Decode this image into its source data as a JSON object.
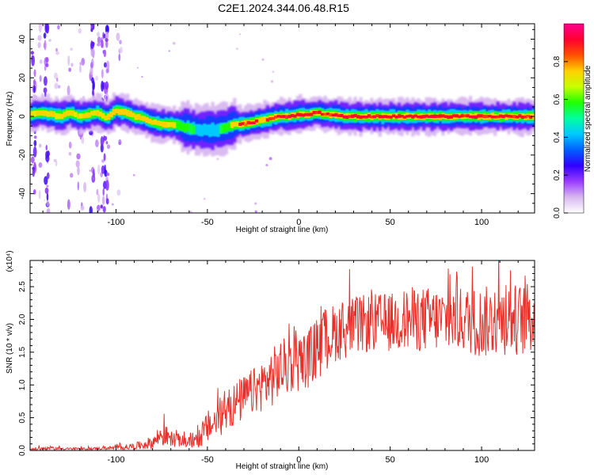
{
  "title": "C2E1.2024.344.06.48.R15",
  "chart_data": [
    {
      "type": "heatmap",
      "xlabel": "Height of straight line (km)",
      "ylabel": "Frequency (Hz)",
      "xlim": [
        -147,
        129
      ],
      "ylim": [
        -50,
        48
      ],
      "xticks": [
        -100,
        -50,
        0,
        50,
        100
      ],
      "yticks": [
        -40,
        -20,
        0,
        20,
        40
      ],
      "grid": false,
      "colorbar": {
        "label": "Normalized spectral amplitude",
        "range": [
          0,
          1
        ],
        "ticks": [
          "0.0",
          "0.2",
          "0.4",
          "0.6",
          "0.8"
        ],
        "colors": [
          "#ffffff",
          "#d8b8f0",
          "#9a3cff",
          "#3000ff",
          "#0060ff",
          "#00c8ff",
          "#00ffa0",
          "#20ff00",
          "#c8ff00",
          "#ffd000",
          "#ff5000",
          "#ff0030",
          "#ff0090"
        ]
      },
      "ridge": {
        "x": [
          -147,
          -140,
          -135,
          -130,
          -125,
          -120,
          -115,
          -110,
          -105,
          -100,
          -95,
          -90,
          -85,
          -80,
          -75,
          -70,
          -65,
          -60,
          -55,
          -50,
          -45,
          -40,
          -35,
          -30,
          -25,
          -20,
          -15,
          -10,
          -5,
          0,
          5,
          10,
          15,
          20,
          25,
          30,
          40,
          50,
          60,
          70,
          80,
          90,
          100,
          110,
          120,
          129
        ],
        "y": [
          1,
          2,
          1,
          0,
          2,
          0,
          1,
          2,
          -1,
          3,
          2,
          0,
          -1,
          -3,
          -4,
          -4,
          -5,
          -6,
          -7,
          -7,
          -7,
          -6,
          -4,
          -4,
          -3,
          -2,
          -1,
          0,
          0,
          1,
          1,
          2,
          1,
          1,
          0,
          0,
          0,
          0,
          0,
          0,
          0,
          0,
          0,
          0,
          0,
          0
        ],
        "peak": [
          0.75,
          0.8,
          0.8,
          0.75,
          0.8,
          0.75,
          0.8,
          0.8,
          0.75,
          0.85,
          0.85,
          0.8,
          0.85,
          0.8,
          0.8,
          0.75,
          0.7,
          0.6,
          0.55,
          0.55,
          0.55,
          0.6,
          0.85,
          0.9,
          0.9,
          0.85,
          0.9,
          0.95,
          0.95,
          0.95,
          0.95,
          0.95,
          0.9,
          0.95,
          0.95,
          0.95,
          0.95,
          1.0,
          1.0,
          1.0,
          1.0,
          0.95,
          0.95,
          0.9,
          0.95,
          0.85
        ]
      }
    },
    {
      "type": "line",
      "xlabel": "Height of straight line (km)",
      "ylabel": "SNR (10 * v/v)",
      "multiplier": "(x10⁴)",
      "xlim": [
        -147,
        129
      ],
      "ylim": [
        0,
        2.9
      ],
      "xticks": [
        -100,
        -50,
        0,
        50,
        100
      ],
      "yticks": [
        "0.0",
        "0.5",
        "1.0",
        "1.5",
        "2.0",
        "2.5"
      ],
      "grid": false,
      "color": "#e8302a",
      "x": [
        -147,
        -140,
        -130,
        -120,
        -110,
        -100,
        -90,
        -80,
        -75,
        -70,
        -65,
        -60,
        -55,
        -50,
        -45,
        -40,
        -35,
        -30,
        -25,
        -20,
        -15,
        -10,
        -5,
        0,
        5,
        10,
        15,
        20,
        25,
        30,
        40,
        50,
        60,
        70,
        80,
        90,
        100,
        110,
        120,
        129
      ],
      "y": [
        0.02,
        0.03,
        0.03,
        0.02,
        0.03,
        0.04,
        0.06,
        0.12,
        0.25,
        0.18,
        0.15,
        0.12,
        0.18,
        0.35,
        0.45,
        0.6,
        0.7,
        0.8,
        0.9,
        1.0,
        1.1,
        1.25,
        1.3,
        1.35,
        1.4,
        1.55,
        1.7,
        1.8,
        1.85,
        1.9,
        1.95,
        1.95,
        2.0,
        2.0,
        2.0,
        2.0,
        1.95,
        2.0,
        2.0,
        2.0
      ],
      "spread": [
        0.02,
        0.03,
        0.02,
        0.02,
        0.02,
        0.03,
        0.05,
        0.1,
        0.2,
        0.12,
        0.1,
        0.08,
        0.15,
        0.25,
        0.3,
        0.3,
        0.35,
        0.35,
        0.35,
        0.4,
        0.45,
        0.45,
        0.45,
        0.45,
        0.45,
        0.5,
        0.5,
        0.45,
        0.45,
        0.45,
        0.45,
        0.45,
        0.5,
        0.5,
        0.5,
        0.5,
        0.55,
        0.55,
        0.55,
        0.55
      ]
    }
  ]
}
